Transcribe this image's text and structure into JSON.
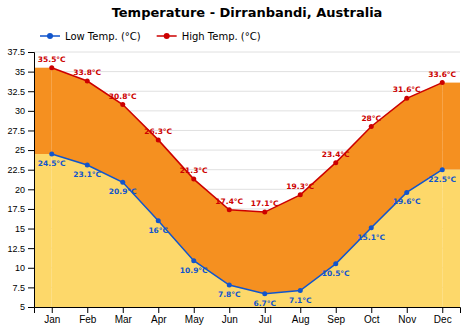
{
  "chart_data": {
    "type": "line",
    "title": "Temperature - Dirranbandi, Australia",
    "categories": [
      "Jan",
      "Feb",
      "Mar",
      "Apr",
      "May",
      "Jun",
      "Jul",
      "Aug",
      "Sep",
      "Oct",
      "Nov",
      "Dec"
    ],
    "series": [
      {
        "name": "Low Temp. (°C)",
        "color": "#1155cc",
        "marker": "circle",
        "values": [
          24.5,
          23.1,
          20.9,
          16.0,
          10.9,
          7.8,
          6.7,
          7.1,
          10.5,
          15.1,
          19.6,
          22.5
        ],
        "value_labels": [
          "24.5°C",
          "23.1°C",
          "20.9°C",
          "16°C",
          "10.9°C",
          "7.8°C",
          "6.7°C",
          "7.1°C",
          "10.5°C",
          "15.1°C",
          "19.6°C",
          "22.5°C"
        ]
      },
      {
        "name": "High Temp. (°C)",
        "color": "#cc0000",
        "marker": "circle",
        "values": [
          35.5,
          33.8,
          30.8,
          26.3,
          21.3,
          17.4,
          17.1,
          19.3,
          23.4,
          28.0,
          31.6,
          33.6
        ],
        "value_labels": [
          "35.5°C",
          "33.8°C",
          "30.8°C",
          "26.3°C",
          "21.3°C",
          "17.4°C",
          "17.1°C",
          "19.3°C",
          "23.4°C",
          "28°C",
          "31.6°C",
          "33.6°C"
        ]
      }
    ],
    "ylim": [
      5.0,
      37.5
    ],
    "yticks": [
      5.0,
      7.5,
      10.0,
      12.5,
      15.0,
      17.5,
      20.0,
      22.5,
      25.0,
      27.5,
      30.0,
      32.5,
      35.0,
      37.5
    ],
    "grid": true,
    "legend": "upper left",
    "data_labels": true
  }
}
